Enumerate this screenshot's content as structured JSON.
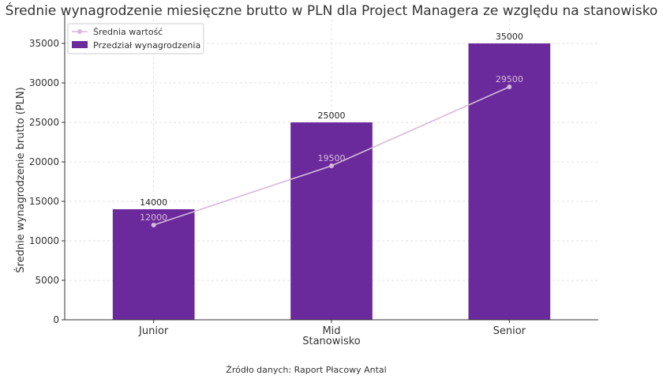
{
  "chart_data": {
    "type": "bar",
    "title": "Średnie wynagrodzenie miesięczne brutto w PLN dla Project Managera ze względu na stanowisko",
    "xlabel": "Stanowisko",
    "ylabel": "Średnie wynagrodzenie brutto (PLN)",
    "categories": [
      "Junior",
      "Mid",
      "Senior"
    ],
    "ylim": [
      0,
      37500
    ],
    "yticks": [
      0,
      5000,
      10000,
      15000,
      20000,
      25000,
      30000,
      35000
    ],
    "grid": true,
    "legend_position": "top-left",
    "series": [
      {
        "name": "Przedział wynagrodzenia",
        "type": "bar",
        "values": [
          14000,
          25000,
          35000
        ],
        "labels": [
          "14000",
          "25000",
          "35000"
        ],
        "color": "#6a2a9c"
      },
      {
        "name": "Średnia wartość",
        "type": "line",
        "values": [
          12000,
          19500,
          29500
        ],
        "labels": [
          "12000",
          "19500",
          "29500"
        ],
        "color": "#d8b9d8"
      }
    ],
    "source_note": "Źródło danych: Raport Płacowy Antal"
  }
}
